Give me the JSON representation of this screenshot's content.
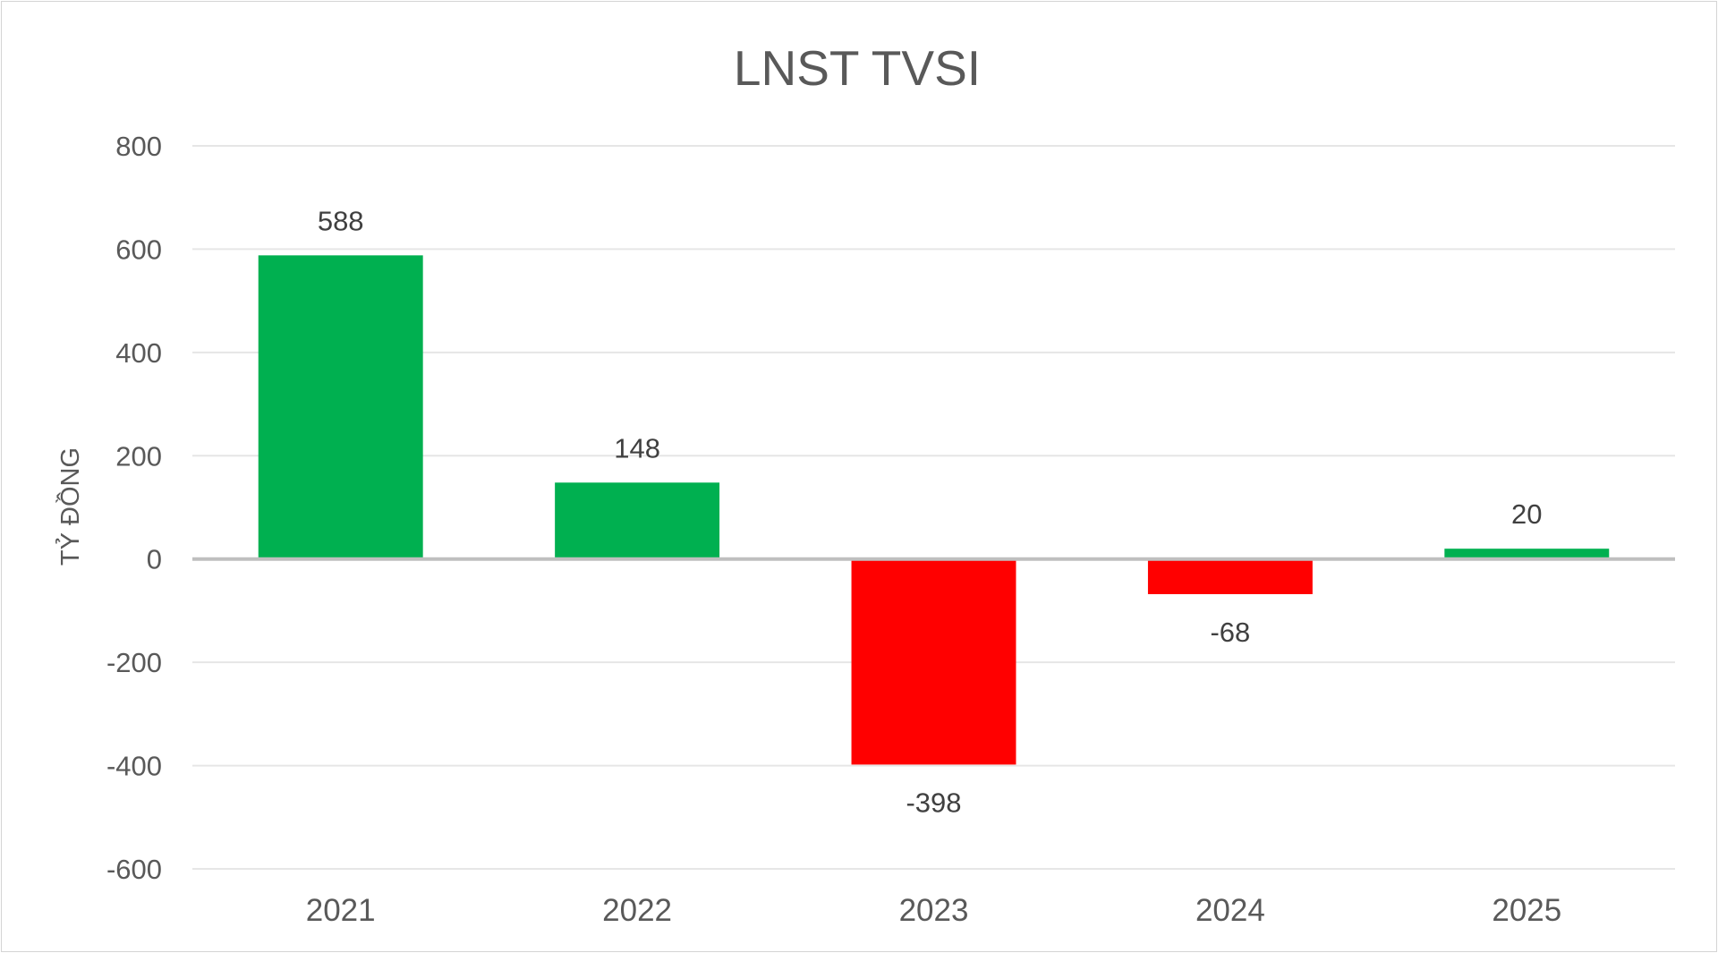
{
  "chart_data": {
    "type": "bar",
    "title": "LNST TVSI",
    "ylabel": "TỶ ĐỒNG",
    "xlabel": "",
    "categories": [
      "2021",
      "2022",
      "2023",
      "2024",
      "2025"
    ],
    "values": [
      588,
      148,
      -398,
      -68,
      20
    ],
    "ylim": [
      -600,
      800
    ],
    "yticks": [
      800,
      600,
      400,
      200,
      0,
      -200,
      -400,
      -600
    ],
    "grid": true,
    "legend": "none",
    "colors": {
      "positive": "#00b050",
      "negative": "#ff0000",
      "grid": "#e6e6e6",
      "zero_axis": "#bfbfbf"
    }
  }
}
